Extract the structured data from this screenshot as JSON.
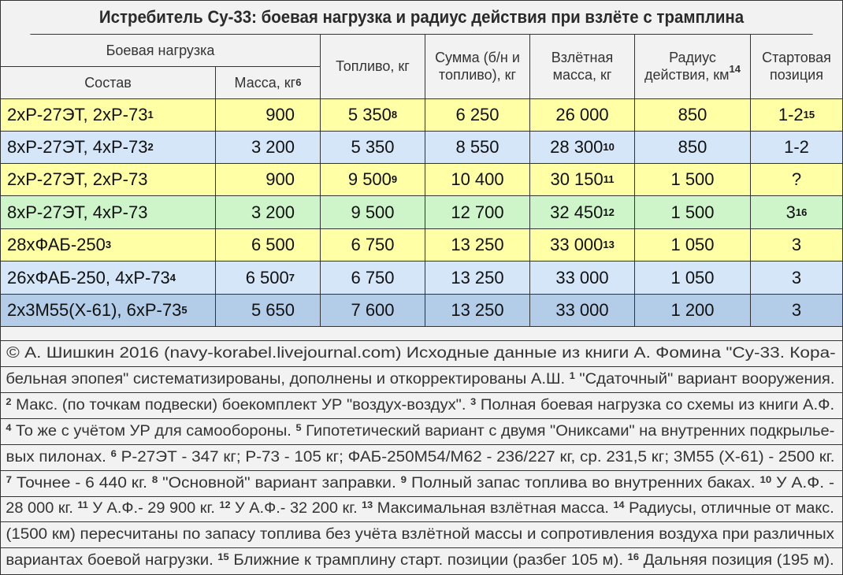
{
  "title": "Истребитель Су-33: боевая нагрузка и радиус действия при взлёте с трамплина",
  "headers": {
    "group": "Боевая нагрузка",
    "composition": "Состав",
    "mass": "Масса, кг",
    "mass_sup": "6",
    "fuel": "Топливо, кг",
    "sum": "Сумма (б/н и топливо), кг",
    "takeoff": "Взлётная масса, кг",
    "radius": "Радиус действия, км",
    "radius_sup": "14",
    "position": "Стартовая позиция"
  },
  "row_colors": {
    "yellow": "#ffffa6",
    "light_blue": "#d5e6f8",
    "green": "#cdf5c9",
    "blue": "#b3cde8"
  },
  "rows": [
    {
      "color": "yellow",
      "composition": "2хР-27ЭТ, 2хР-73",
      "c_sup": "1",
      "mass": "900",
      "m_sup": "",
      "fuel": "5 350",
      "f_sup": "8",
      "sum": "6 250",
      "takeoff": "26 000",
      "t_sup": "",
      "radius": "850",
      "position": "1-2",
      "p_sup": "15"
    },
    {
      "color": "light_blue",
      "composition": "8хР-27ЭТ, 4хР-73",
      "c_sup": "2",
      "mass": "3 200",
      "m_sup": "",
      "fuel": "5 350",
      "f_sup": "",
      "sum": "8 550",
      "takeoff": "28 300",
      "t_sup": "10",
      "radius": "850",
      "position": "1-2",
      "p_sup": ""
    },
    {
      "color": "yellow",
      "composition": "2хР-27ЭТ, 2хР-73",
      "c_sup": "",
      "mass": "900",
      "m_sup": "",
      "fuel": "9 500",
      "f_sup": "9",
      "sum": "10 400",
      "takeoff": "30 150",
      "t_sup": "11",
      "radius": "1 500",
      "position": "?",
      "p_sup": ""
    },
    {
      "color": "green",
      "composition": "8хР-27ЭТ, 4хР-73",
      "c_sup": "",
      "mass": "3 200",
      "m_sup": "",
      "fuel": "9 500",
      "f_sup": "",
      "sum": "12 700",
      "takeoff": "32 450",
      "t_sup": "12",
      "radius": "1 500",
      "position": "3",
      "p_sup": "16"
    },
    {
      "color": "yellow",
      "composition": "28хФАБ-250",
      "c_sup": "3",
      "mass": "6 500",
      "m_sup": "",
      "fuel": "6 750",
      "f_sup": "",
      "sum": "13 250",
      "takeoff": "33 000",
      "t_sup": "13",
      "radius": "1 050",
      "position": "3",
      "p_sup": ""
    },
    {
      "color": "light_blue",
      "composition": "26хФАБ-250, 4хР-73",
      "c_sup": "4",
      "mass": "6 500",
      "m_sup": "7",
      "fuel": "6 750",
      "f_sup": "",
      "sum": "13 250",
      "takeoff": "33 000",
      "t_sup": "",
      "radius": "1 050",
      "position": "3",
      "p_sup": ""
    },
    {
      "color": "blue",
      "composition": "2х3М55(Х-61), 6хР-73",
      "c_sup": "5",
      "mass": "5 650",
      "m_sup": "",
      "fuel": "7 600",
      "f_sup": "",
      "sum": "13 250",
      "takeoff": "33 000",
      "t_sup": "",
      "radius": "1 200",
      "position": "3",
      "p_sup": ""
    }
  ],
  "notes": [
    [
      {
        "t": "© А. Шишкин 2016 (navy-korabel.livejournal.com)    Исходные данные из книги А. Фомина \"Су-33. Кора-"
      }
    ],
    [
      {
        "t": "бельная эпопея\" систематизированы, дополнены и откорректированы А.Ш. "
      },
      {
        "s": "1"
      },
      {
        "t": " \"Сдаточный\" вариант вооружения."
      }
    ],
    [
      {
        "s": "2"
      },
      {
        "t": " Макс. (по точкам подвески) боекомплект УР \"воздух-воздух\". "
      },
      {
        "s": "3"
      },
      {
        "t": " Полная боевая нагрузка со схемы из книги А.Ф."
      }
    ],
    [
      {
        "s": "4"
      },
      {
        "t": " То же с учётом УР для самообороны. "
      },
      {
        "s": "5"
      },
      {
        "t": " Гипотетический вариант с двумя \"Ониксами\" на внутренних подкрылье-"
      }
    ],
    [
      {
        "t": "вых пилонах. "
      },
      {
        "s": "6"
      },
      {
        "t": " Р-27ЭТ - 347 кг; Р-73 - 105 кг; ФАБ-250М54/М62 - 236/227 кг, ср. 231,5 кг; 3М55 (Х-61) - 2500 кг."
      }
    ],
    [
      {
        "s": "7"
      },
      {
        "t": " Точнее - 6 440 кг. "
      },
      {
        "s": "8"
      },
      {
        "t": " \"Основной\" вариант заправки. "
      },
      {
        "s": "9"
      },
      {
        "t": " Полный запас топлива во внутренних баках. "
      },
      {
        "s": "10"
      },
      {
        "t": " У А.Ф. -"
      }
    ],
    [
      {
        "t": "28 000 кг. "
      },
      {
        "s": "11"
      },
      {
        "t": " У А.Ф.- 29 900 кг. "
      },
      {
        "s": "12"
      },
      {
        "t": " У А.Ф.- 32 200 кг. "
      },
      {
        "s": "13"
      },
      {
        "t": " Максимальная взлётная масса. "
      },
      {
        "s": "14"
      },
      {
        "t": " Радиусы, отличные от макс."
      }
    ],
    [
      {
        "t": "(1500 км) пересчитаны по запасу топлива без учёта взлётной массы и сопротивления воздуха при различных"
      }
    ],
    [
      {
        "t": "вариантах боевой нагрузки. "
      },
      {
        "s": "15"
      },
      {
        "t": " Ближние к трамплину старт. позиции (разбег 105 м). "
      },
      {
        "s": "16"
      },
      {
        "t": " Дальняя позиция (195 м)."
      }
    ]
  ]
}
